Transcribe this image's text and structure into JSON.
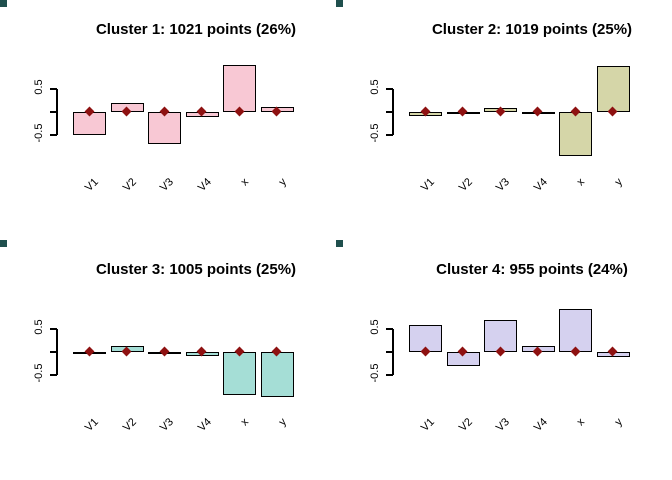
{
  "figure": {
    "background": "#ffffff",
    "axis_color": "#000000",
    "bar_border_color": "#000000",
    "marker_color": "#8e1111",
    "marker_shape": "diamond",
    "corner_mark_color": "#1f4f4d"
  },
  "chart_data": [
    {
      "type": "bar",
      "title": "Cluster 1: 1021 points (26%)",
      "categories": [
        "V1",
        "V2",
        "V3",
        "V4",
        "x",
        "y"
      ],
      "values": [
        -0.5,
        0.19,
        -0.7,
        -0.1,
        1.02,
        0.1
      ],
      "marker_y": [
        0,
        0,
        0,
        0,
        0,
        0
      ],
      "bar_color": "#f8c8d4",
      "ylim": [
        -1.05,
        1.25
      ],
      "yticks": [
        {
          "v": 0.5,
          "label": "0.5"
        },
        {
          "v": 0,
          "label": ""
        },
        {
          "v": -0.5,
          "label": "-0.5"
        }
      ],
      "grid": false,
      "legend": false
    },
    {
      "type": "bar",
      "title": "Cluster 2: 1019 points (25%)",
      "categories": [
        "V1",
        "V2",
        "V3",
        "V4",
        "x",
        "y"
      ],
      "values": [
        -0.08,
        -0.02,
        0.08,
        -0.02,
        -0.95,
        1.0
      ],
      "marker_y": [
        0,
        0,
        0,
        0,
        0,
        0
      ],
      "bar_color": "#d5d6a8",
      "ylim": [
        -1.05,
        1.25
      ],
      "yticks": [
        {
          "v": 0.5,
          "label": "0.5"
        },
        {
          "v": 0,
          "label": ""
        },
        {
          "v": -0.5,
          "label": "-0.5"
        }
      ],
      "grid": false,
      "legend": false
    },
    {
      "type": "bar",
      "title": "Cluster 3: 1005 points (25%)",
      "categories": [
        "V1",
        "V2",
        "V3",
        "V4",
        "x",
        "y"
      ],
      "values": [
        -0.02,
        0.13,
        -0.02,
        -0.08,
        -0.93,
        -0.98
      ],
      "marker_y": [
        0,
        0,
        0,
        0,
        0,
        0
      ],
      "bar_color": "#a5ded6",
      "ylim": [
        -1.05,
        1.25
      ],
      "yticks": [
        {
          "v": 0.5,
          "label": "0.5"
        },
        {
          "v": 0,
          "label": ""
        },
        {
          "v": -0.5,
          "label": "-0.5"
        }
      ],
      "grid": false,
      "legend": false
    },
    {
      "type": "bar",
      "title": "Cluster 4: 955 points (24%)",
      "categories": [
        "V1",
        "V2",
        "V3",
        "V4",
        "x",
        "y"
      ],
      "values": [
        0.58,
        -0.3,
        0.7,
        0.13,
        0.94,
        -0.1
      ],
      "marker_y": [
        0,
        0,
        0,
        0,
        0,
        0
      ],
      "bar_color": "#d5d1ef",
      "ylim": [
        -1.05,
        1.25
      ],
      "yticks": [
        {
          "v": 0.5,
          "label": "0.5"
        },
        {
          "v": 0,
          "label": ""
        },
        {
          "v": -0.5,
          "label": "-0.5"
        }
      ],
      "grid": false,
      "legend": false
    }
  ]
}
